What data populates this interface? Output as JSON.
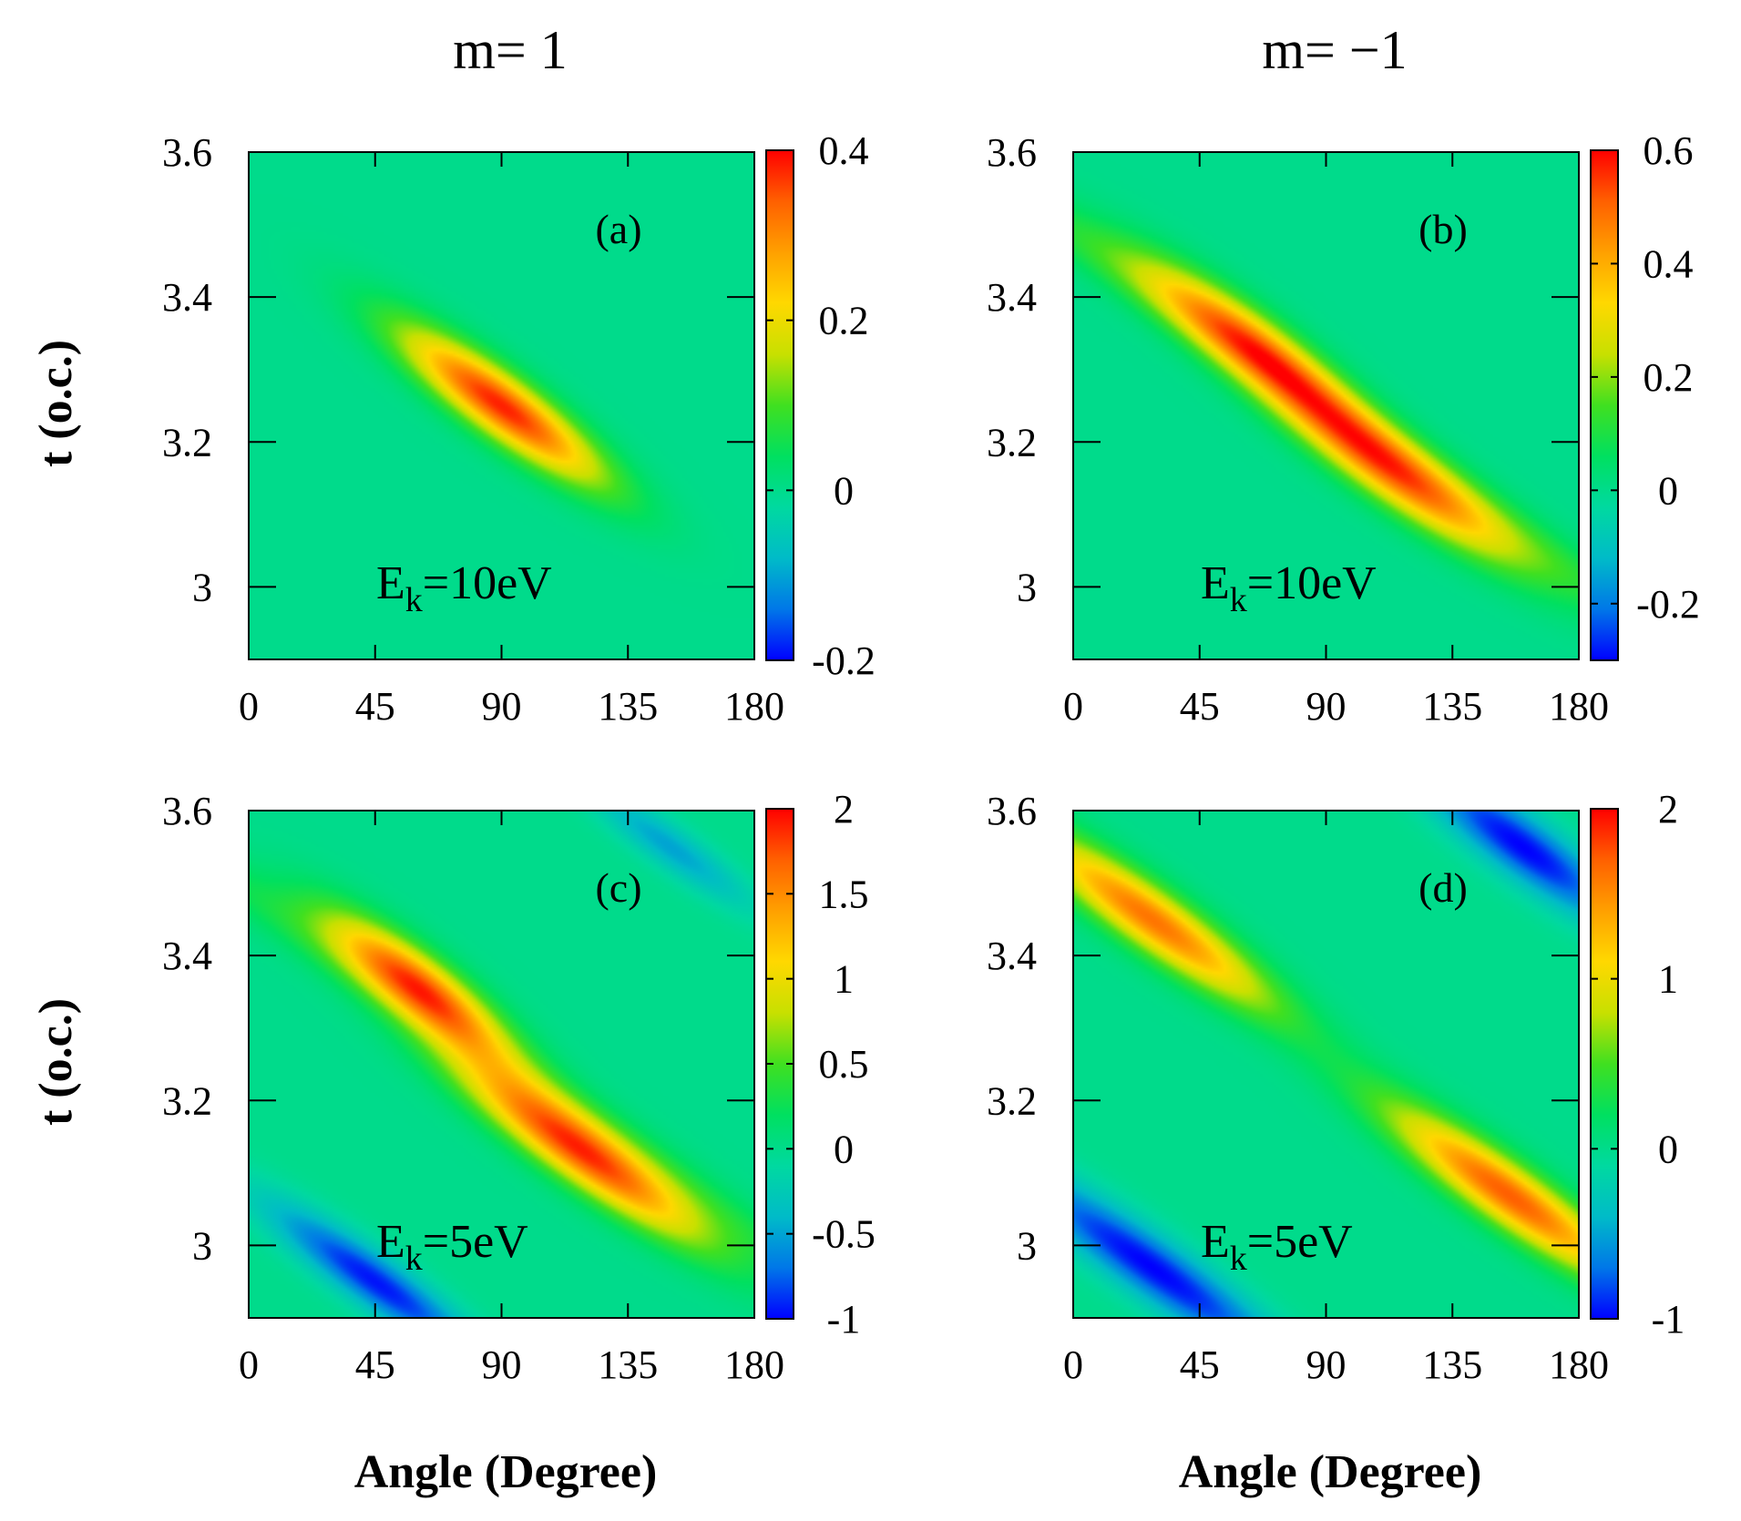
{
  "figure": {
    "column_titles": [
      "m= 1",
      "m= −1"
    ],
    "colormap": [
      "#0000ff",
      "#0077e8",
      "#00bbc8",
      "#00d9a0",
      "#00e060",
      "#40e020",
      "#c8e000",
      "#ffd800",
      "#ffa000",
      "#ff6000",
      "#ff0000"
    ]
  },
  "chart_data": [
    {
      "type": "heatmap",
      "panel": "(a)",
      "column_title": "m= 1",
      "energy_label": "E",
      "energy_sub": "k",
      "energy_value": "=10eV",
      "xlabel": "Angle (Degree)",
      "ylabel": "t (o.c.)",
      "xlim": [
        0,
        180
      ],
      "ylim": [
        2.9,
        3.6
      ],
      "xticks": [
        "0",
        "45",
        "90",
        "135",
        "180"
      ],
      "yticks": [
        "3",
        "3.2",
        "3.4",
        "3.6"
      ],
      "ytick_values": [
        3.0,
        3.2,
        3.4,
        3.6
      ],
      "colorbar": {
        "range": [
          -0.2,
          0.4
        ],
        "ticks": [
          "-0.2",
          "0",
          "0.2",
          "0.4"
        ],
        "tick_values": [
          -0.2,
          0.0,
          0.2,
          0.4
        ]
      },
      "features": [
        {
          "kind": "positive-lobe",
          "angle": 90,
          "t": 3.25,
          "peak": 0.38,
          "along_width_deg": 25,
          "across_width_t": 0.035,
          "slope_t_per_deg": -0.0026
        }
      ]
    },
    {
      "type": "heatmap",
      "panel": "(b)",
      "column_title": "m= −1",
      "energy_label": "E",
      "energy_sub": "k",
      "energy_value": "=10eV",
      "xlabel": "Angle (Degree)",
      "ylabel": "",
      "xlim": [
        0,
        180
      ],
      "ylim": [
        2.9,
        3.6
      ],
      "xticks": [
        "0",
        "45",
        "90",
        "135",
        "180"
      ],
      "yticks": [
        "3",
        "3.2",
        "3.4",
        "3.6"
      ],
      "ytick_values": [
        3.0,
        3.2,
        3.4,
        3.6
      ],
      "colorbar": {
        "range": [
          -0.3,
          0.6
        ],
        "ticks": [
          "-0.2",
          "0",
          "0.2",
          "0.4",
          "0.6"
        ],
        "tick_values": [
          -0.2,
          0.0,
          0.2,
          0.4,
          0.6
        ]
      },
      "features": [
        {
          "kind": "positive-lobe",
          "angle": 62,
          "t": 3.34,
          "peak": 0.42,
          "along_width_deg": 26,
          "across_width_t": 0.035,
          "slope_t_per_deg": -0.0026
        },
        {
          "kind": "positive-lobe",
          "angle": 113,
          "t": 3.16,
          "peak": 0.46,
          "along_width_deg": 30,
          "across_width_t": 0.035,
          "slope_t_per_deg": -0.0026
        },
        {
          "kind": "ridge",
          "angle": 90,
          "t": 3.25,
          "peak": 0.14,
          "along_width_deg": 95,
          "across_width_t": 0.03,
          "slope_t_per_deg": -0.0026
        }
      ]
    },
    {
      "type": "heatmap",
      "panel": "(c)",
      "column_title": "m= 1",
      "energy_label": "E",
      "energy_sub": "k",
      "energy_value": "=5eV",
      "xlabel": "Angle (Degree)",
      "ylabel": "t (o.c.)",
      "xlim": [
        0,
        180
      ],
      "ylim": [
        2.9,
        3.6
      ],
      "xticks": [
        "0",
        "45",
        "90",
        "135",
        "180"
      ],
      "yticks": [
        "3",
        "3.2",
        "3.4",
        "3.6"
      ],
      "ytick_values": [
        3.0,
        3.2,
        3.4,
        3.6
      ],
      "colorbar": {
        "range": [
          -1,
          2
        ],
        "ticks": [
          "-1",
          "-0.5",
          "0",
          "0.5",
          "1",
          "1.5",
          "2"
        ],
        "tick_values": [
          -1,
          -0.5,
          0,
          0.5,
          1,
          1.5,
          2
        ]
      },
      "features": [
        {
          "kind": "positive-lobe",
          "angle": 60,
          "t": 3.36,
          "peak": 1.7,
          "along_width_deg": 22,
          "across_width_t": 0.035,
          "slope_t_per_deg": -0.0026
        },
        {
          "kind": "positive-lobe",
          "angle": 118,
          "t": 3.13,
          "peak": 1.8,
          "along_width_deg": 30,
          "across_width_t": 0.035,
          "slope_t_per_deg": -0.0026
        },
        {
          "kind": "ridge",
          "angle": 90,
          "t": 3.25,
          "peak": 0.35,
          "along_width_deg": 100,
          "across_width_t": 0.03,
          "slope_t_per_deg": -0.0026
        },
        {
          "kind": "negative-band",
          "angle": 45,
          "t": 2.95,
          "peak": -0.95,
          "along_width_deg": 26,
          "across_width_t": 0.03,
          "slope_t_per_deg": -0.0026
        },
        {
          "kind": "negative-band",
          "angle": 150,
          "t": 3.55,
          "peak": -0.5,
          "along_width_deg": 20,
          "across_width_t": 0.025,
          "slope_t_per_deg": -0.0026
        }
      ]
    },
    {
      "type": "heatmap",
      "panel": "(d)",
      "column_title": "m= −1",
      "energy_label": "E",
      "energy_sub": "k",
      "energy_value": "=5eV",
      "xlabel": "Angle (Degree)",
      "ylabel": "",
      "xlim": [
        0,
        180
      ],
      "ylim": [
        2.9,
        3.6
      ],
      "xticks": [
        "0",
        "45",
        "90",
        "135",
        "180"
      ],
      "yticks": [
        "3",
        "3.2",
        "3.4",
        "3.6"
      ],
      "ytick_values": [
        3.0,
        3.2,
        3.4,
        3.6
      ],
      "colorbar": {
        "range": [
          -1,
          2
        ],
        "ticks": [
          "-1",
          "0",
          "1",
          "2"
        ],
        "tick_values": [
          -1,
          0,
          1,
          2
        ]
      },
      "features": [
        {
          "kind": "positive-lobe",
          "angle": 28,
          "t": 3.45,
          "peak": 1.6,
          "along_width_deg": 30,
          "across_width_t": 0.035,
          "slope_t_per_deg": -0.0026
        },
        {
          "kind": "positive-lobe",
          "angle": 155,
          "t": 3.07,
          "peak": 1.7,
          "along_width_deg": 30,
          "across_width_t": 0.035,
          "slope_t_per_deg": -0.0026
        },
        {
          "kind": "negative-band",
          "angle": 28,
          "t": 2.97,
          "peak": -1.0,
          "along_width_deg": 34,
          "across_width_t": 0.035,
          "slope_t_per_deg": -0.0026
        },
        {
          "kind": "negative-band",
          "angle": 160,
          "t": 3.55,
          "peak": -1.0,
          "along_width_deg": 25,
          "across_width_t": 0.035,
          "slope_t_per_deg": -0.0026
        }
      ]
    }
  ]
}
